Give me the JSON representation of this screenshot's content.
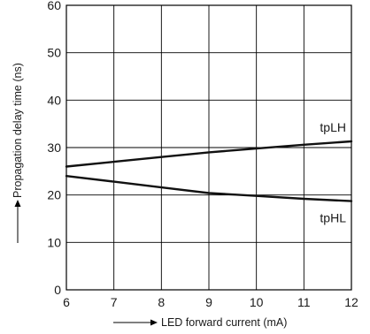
{
  "chart_data": {
    "type": "line",
    "xlabel": "LED forward current (mA)",
    "ylabel": "Propagation delay time (ns)",
    "xlim": [
      6,
      12
    ],
    "ylim": [
      0,
      60
    ],
    "x_ticks": [
      6,
      7,
      8,
      9,
      10,
      11,
      12
    ],
    "y_ticks": [
      0,
      10,
      20,
      30,
      40,
      50,
      60
    ],
    "grid": true,
    "legend": "none",
    "series": [
      {
        "name": "tpLH",
        "color": "#111111",
        "x": [
          6,
          7,
          8,
          9,
          10,
          11,
          12
        ],
        "y": [
          26,
          27,
          28,
          29,
          29.8,
          30.6,
          31.3
        ]
      },
      {
        "name": "tpHL",
        "color": "#111111",
        "x": [
          6,
          7,
          8,
          9,
          10,
          11,
          12
        ],
        "y": [
          24,
          22.8,
          21.6,
          20.4,
          19.8,
          19.2,
          18.7
        ]
      }
    ]
  }
}
